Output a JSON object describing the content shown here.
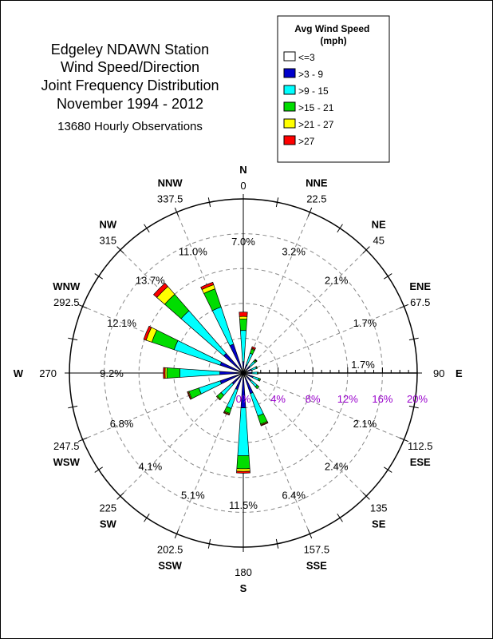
{
  "chart_data": {
    "type": "polar-bar",
    "title_lines": [
      "Edgeley NDAWN Station",
      "Wind Speed/Direction",
      "Joint Frequency Distribution",
      "November 1994 - 2012"
    ],
    "subtitle": "13680 Hourly Observations",
    "legend_title": "Avg Wind Speed (mph)",
    "speed_classes": [
      {
        "label": "<=3",
        "color": "#ffffff"
      },
      {
        "label": ">3 - 9",
        "color": "#0000cc"
      },
      {
        "label": ">9 - 15",
        "color": "#00ffff"
      },
      {
        "label": ">15 - 21",
        "color": "#00dd00"
      },
      {
        "label": ">21 - 27",
        "color": "#ffff00"
      },
      {
        "label": ">27",
        "color": "#ff0000"
      }
    ],
    "radial_ticks": [
      "0%",
      "4%",
      "8%",
      "12%",
      "16%",
      "20%"
    ],
    "radial_max": 20,
    "sectors": [
      {
        "name": "N",
        "deg": "0",
        "pct": "7.0%",
        "values": [
          0.0,
          1.3,
          3.6,
          1.3,
          0.3,
          0.5
        ]
      },
      {
        "name": "NNE",
        "deg": "22.5",
        "pct": "3.2%",
        "values": [
          0.0,
          1.0,
          1.4,
          0.5,
          0.1,
          0.2
        ]
      },
      {
        "name": "NE",
        "deg": "45",
        "pct": "2.1%",
        "values": [
          0.0,
          1.0,
          0.8,
          0.2,
          0.05,
          0.05
        ]
      },
      {
        "name": "ENE",
        "deg": "67.5",
        "pct": "1.7%",
        "values": [
          0.0,
          1.0,
          0.6,
          0.1,
          0.0,
          0.0
        ]
      },
      {
        "name": "E",
        "deg": "90",
        "pct": "1.7%",
        "values": [
          0.0,
          1.0,
          0.6,
          0.1,
          0.0,
          0.0
        ]
      },
      {
        "name": "ESE",
        "deg": "112.5",
        "pct": "2.1%",
        "values": [
          0.0,
          1.2,
          0.7,
          0.2,
          0.0,
          0.0
        ]
      },
      {
        "name": "SE",
        "deg": "135",
        "pct": "2.4%",
        "values": [
          0.0,
          1.2,
          0.9,
          0.3,
          0.0,
          0.0
        ]
      },
      {
        "name": "SSE",
        "deg": "157.5",
        "pct": "6.4%",
        "values": [
          0.0,
          2.5,
          2.7,
          1.0,
          0.1,
          0.1
        ]
      },
      {
        "name": "S",
        "deg": "180",
        "pct": "11.5%",
        "values": [
          0.0,
          4.0,
          5.5,
          1.5,
          0.3,
          0.2
        ]
      },
      {
        "name": "SSW",
        "deg": "202.5",
        "pct": "5.1%",
        "values": [
          0.0,
          2.0,
          2.3,
          0.6,
          0.1,
          0.1
        ]
      },
      {
        "name": "SW",
        "deg": "225",
        "pct": "4.1%",
        "values": [
          0.0,
          1.7,
          1.7,
          0.6,
          0.1,
          0.0
        ]
      },
      {
        "name": "WSW",
        "deg": "247.5",
        "pct": "6.8%",
        "values": [
          0.0,
          2.8,
          2.6,
          1.2,
          0.1,
          0.1
        ]
      },
      {
        "name": "W",
        "deg": "270",
        "pct": "9.2%",
        "values": [
          0.0,
          2.7,
          4.6,
          1.5,
          0.2,
          0.2
        ]
      },
      {
        "name": "WNW",
        "deg": "292.5",
        "pct": "12.1%",
        "values": [
          0.0,
          2.8,
          5.6,
          2.7,
          0.7,
          0.3
        ]
      },
      {
        "name": "NW",
        "deg": "315",
        "pct": "13.7%",
        "values": [
          0.0,
          3.0,
          6.5,
          2.5,
          1.2,
          0.5
        ]
      },
      {
        "name": "NNW",
        "deg": "337.5",
        "pct": "11.0%",
        "values": [
          0.0,
          3.5,
          4.5,
          2.2,
          0.5,
          0.3
        ]
      }
    ]
  }
}
